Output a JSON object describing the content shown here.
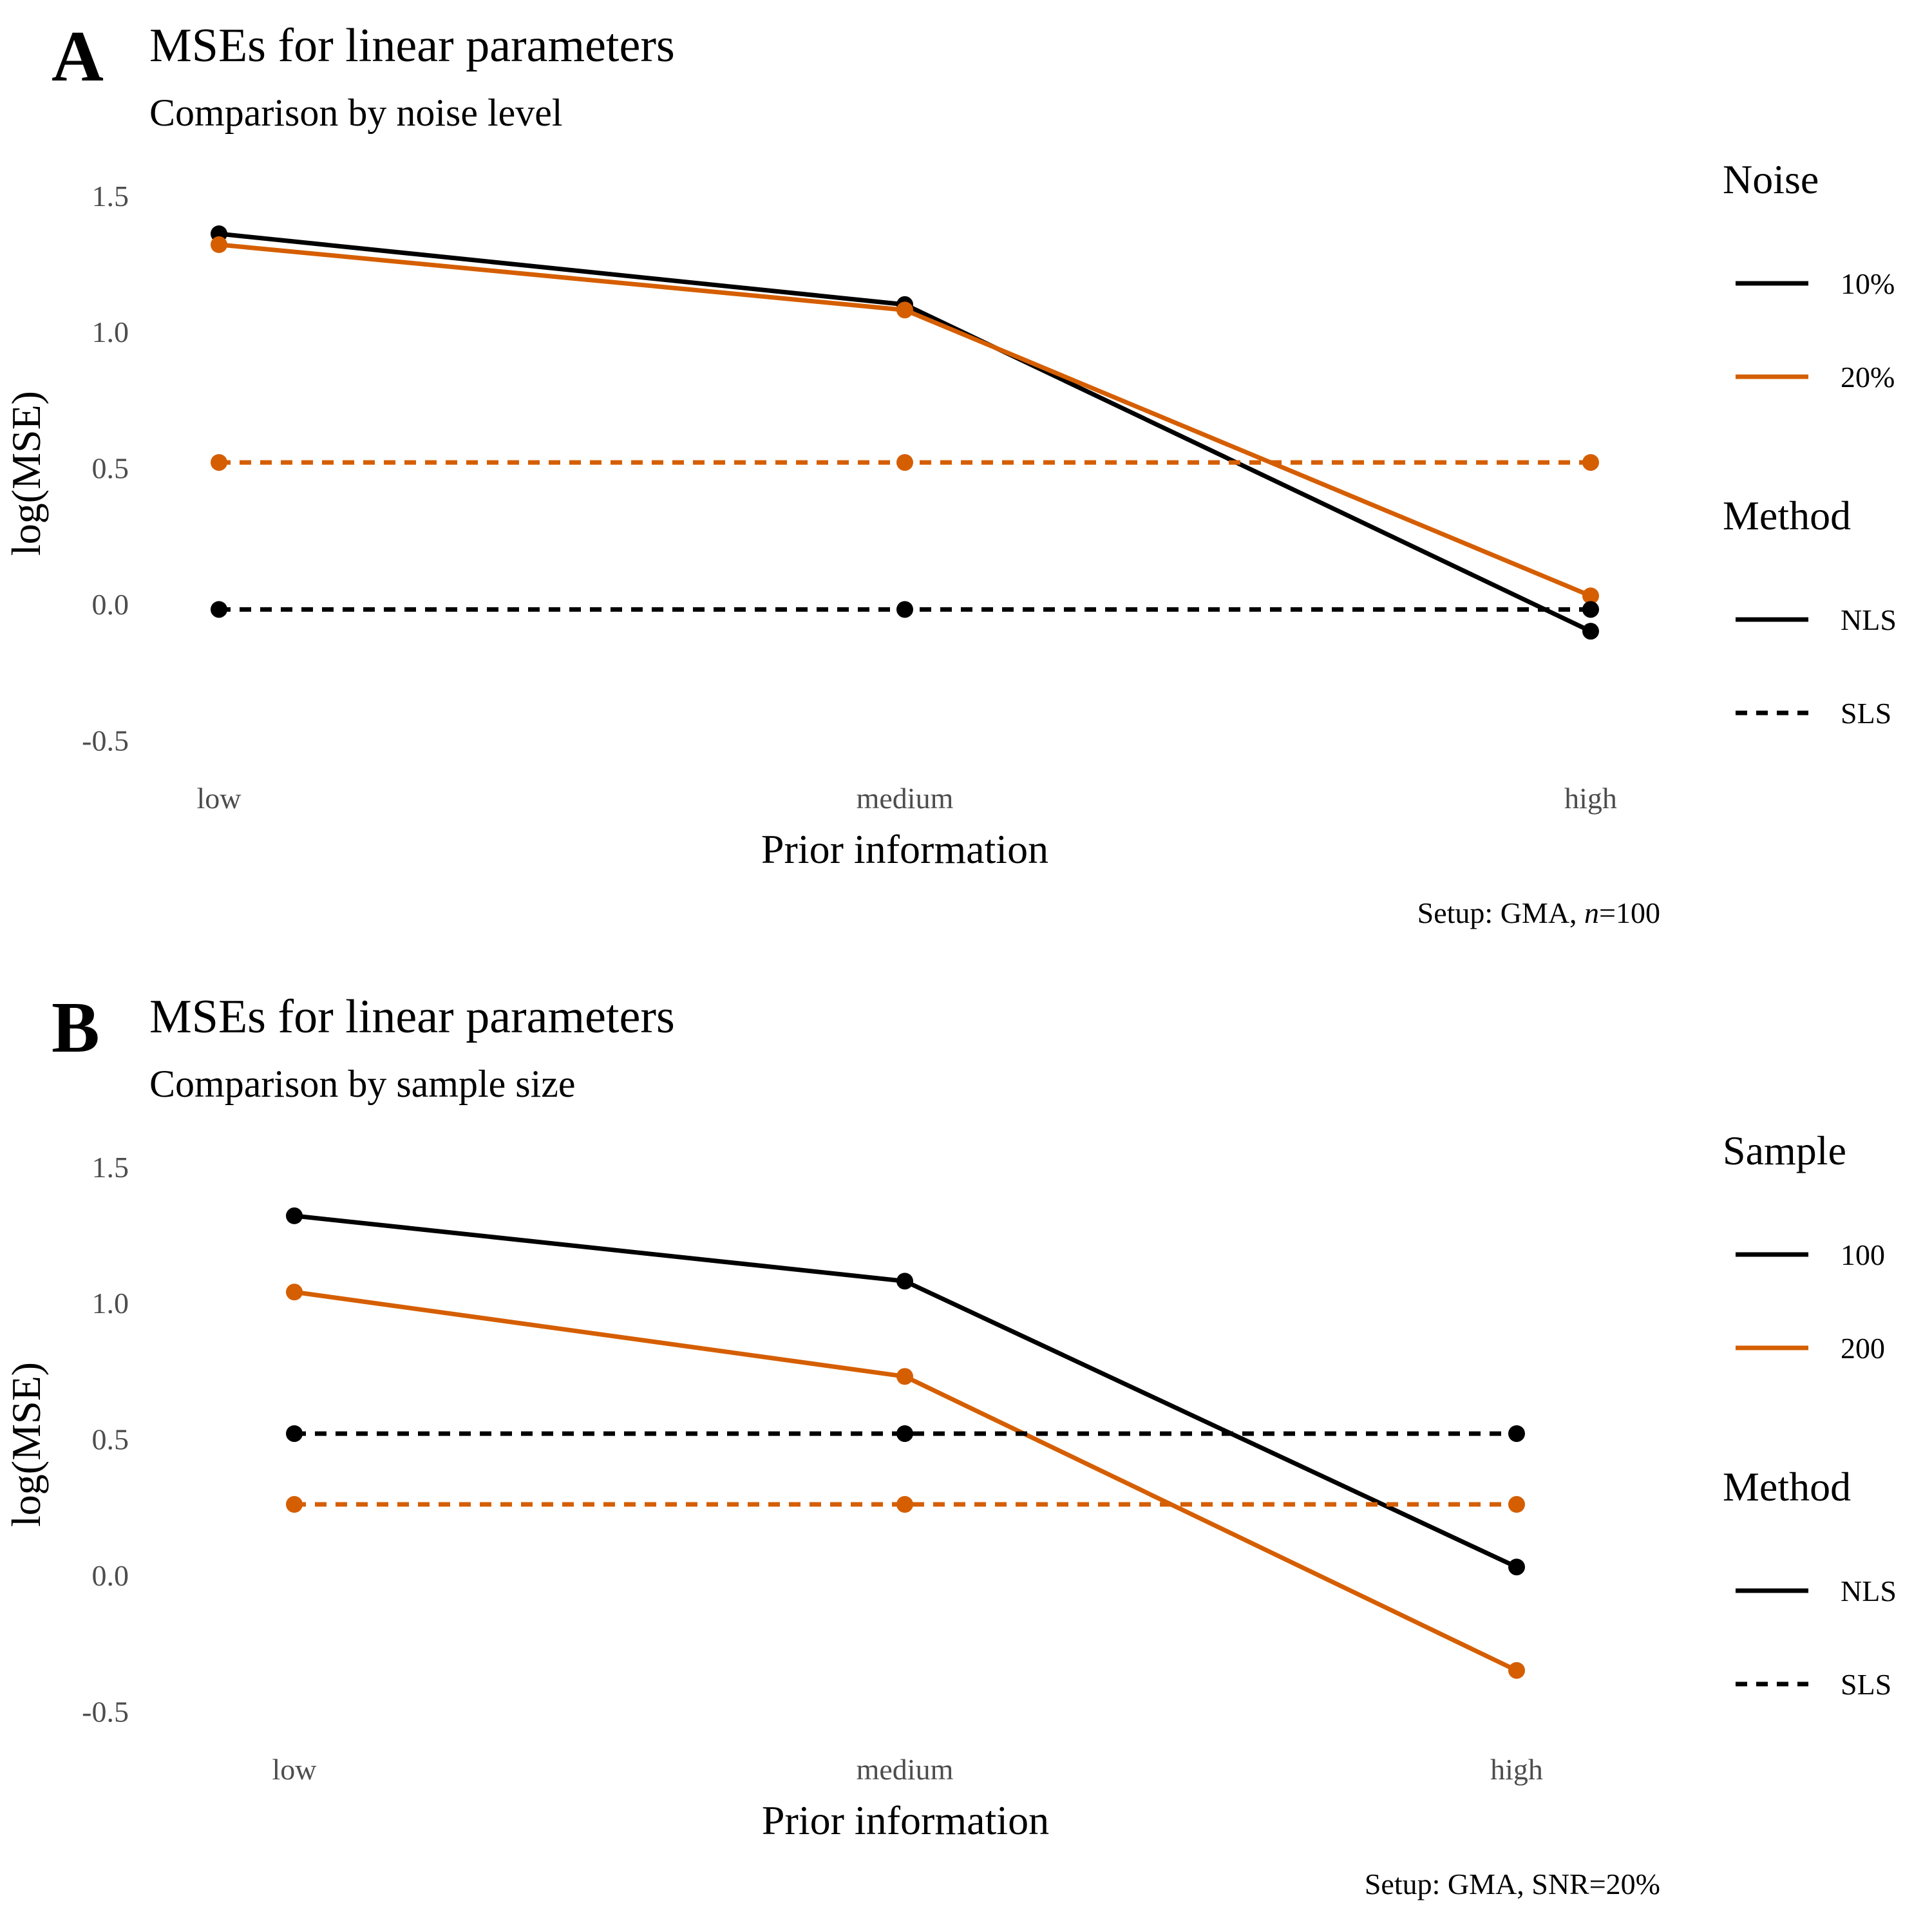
{
  "colors": {
    "black": "#000000",
    "orange": "#D55E00"
  },
  "chart_data": [
    {
      "panel": "A",
      "type": "line",
      "title": "MSEs for linear parameters",
      "subtitle": "Comparison by noise level",
      "xlabel": "Prior information",
      "ylabel": "log(MSE)",
      "categories": [
        "low",
        "medium",
        "high"
      ],
      "ylim": [
        -0.62,
        1.58
      ],
      "yticks": [
        -0.5,
        0.0,
        0.5,
        1.0,
        1.5
      ],
      "ytick_labels": [
        "-0.5",
        "0.0",
        "0.5",
        "1.0",
        "1.5"
      ],
      "caption_prefix": "Setup: GMA, ",
      "caption_italic": "n",
      "caption_suffix": "=100",
      "legend": [
        {
          "title": "Noise",
          "entries": [
            {
              "label": "10%",
              "color": "#000000",
              "dash": "solid"
            },
            {
              "label": "20%",
              "color": "#D55E00",
              "dash": "solid"
            }
          ]
        },
        {
          "title": "Method",
          "entries": [
            {
              "label": "NLS",
              "color": "#000000",
              "dash": "solid"
            },
            {
              "label": "SLS",
              "color": "#000000",
              "dash": "dashed"
            }
          ]
        }
      ],
      "series": [
        {
          "name": "NLS 10%",
          "group": "10%",
          "method": "NLS",
          "color": "#000000",
          "dash": "solid",
          "values": [
            1.36,
            1.1,
            -0.1
          ]
        },
        {
          "name": "NLS 20%",
          "group": "20%",
          "method": "NLS",
          "color": "#D55E00",
          "dash": "solid",
          "values": [
            1.32,
            1.08,
            0.03
          ]
        },
        {
          "name": "SLS 20%",
          "group": "20%",
          "method": "SLS",
          "color": "#D55E00",
          "dash": "dashed",
          "values": [
            0.52,
            0.52,
            0.52
          ]
        },
        {
          "name": "SLS 10%",
          "group": "10%",
          "method": "SLS",
          "color": "#000000",
          "dash": "dashed",
          "values": [
            -0.02,
            -0.02,
            -0.02
          ]
        }
      ]
    },
    {
      "panel": "B",
      "type": "line",
      "title": "MSEs for linear parameters",
      "subtitle": "Comparison by sample size",
      "xlabel": "Prior information",
      "ylabel": "log(MSE)",
      "categories": [
        "low",
        "medium",
        "high"
      ],
      "ylim": [
        -0.62,
        1.58
      ],
      "yticks": [
        -0.5,
        0.0,
        0.5,
        1.0,
        1.5
      ],
      "ytick_labels": [
        "-0.5",
        "0.0",
        "0.5",
        "1.0",
        "1.5"
      ],
      "caption_prefix": "Setup: GMA, SNR=20%",
      "caption_italic": "",
      "caption_suffix": "",
      "legend": [
        {
          "title": "Sample",
          "entries": [
            {
              "label": "100",
              "color": "#000000",
              "dash": "solid"
            },
            {
              "label": "200",
              "color": "#D55E00",
              "dash": "solid"
            }
          ]
        },
        {
          "title": "Method",
          "entries": [
            {
              "label": "NLS",
              "color": "#000000",
              "dash": "solid"
            },
            {
              "label": "SLS",
              "color": "#000000",
              "dash": "dashed"
            }
          ]
        }
      ],
      "series": [
        {
          "name": "NLS 100",
          "group": "100",
          "method": "NLS",
          "color": "#000000",
          "dash": "solid",
          "values": [
            1.32,
            1.08,
            0.03
          ]
        },
        {
          "name": "NLS 200",
          "group": "200",
          "method": "NLS",
          "color": "#D55E00",
          "dash": "solid",
          "values": [
            1.04,
            0.73,
            -0.35
          ]
        },
        {
          "name": "SLS 100",
          "group": "100",
          "method": "SLS",
          "color": "#000000",
          "dash": "dashed",
          "values": [
            0.52,
            0.52,
            0.52
          ]
        },
        {
          "name": "SLS 200",
          "group": "200",
          "method": "SLS",
          "color": "#D55E00",
          "dash": "dashed",
          "values": [
            0.26,
            0.26,
            0.26
          ]
        }
      ]
    }
  ]
}
